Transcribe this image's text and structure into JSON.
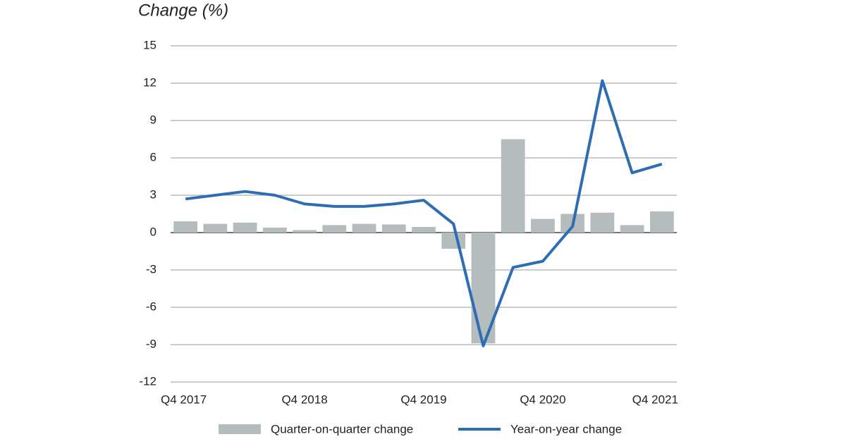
{
  "chart_data": {
    "type": "bar_line",
    "y_axis_label": "Change (%)",
    "categories": [
      "Q4 2017",
      null,
      null,
      null,
      "Q4 2018",
      null,
      null,
      null,
      "Q4 2019",
      null,
      null,
      null,
      "Q4 2020",
      null,
      null,
      null,
      "Q4 2021"
    ],
    "series": [
      {
        "name": "Quarter-on-quarter change",
        "type": "bar",
        "color": "#b4bcbe",
        "values": [
          0.9,
          0.7,
          0.8,
          0.4,
          0.2,
          0.6,
          0.7,
          0.65,
          0.45,
          -1.3,
          -8.9,
          7.5,
          1.1,
          1.5,
          1.6,
          0.6,
          1.7
        ]
      },
      {
        "name": "Year-on-year change",
        "type": "line",
        "color": "#2e6db4",
        "values": [
          2.7,
          3.0,
          3.3,
          3.0,
          2.3,
          2.1,
          2.1,
          2.3,
          2.6,
          0.7,
          -9.1,
          -2.8,
          -2.3,
          0.5,
          12.2,
          4.8,
          5.5
        ]
      }
    ],
    "ylim": [
      -12,
      15
    ],
    "yticks": [
      -12,
      -9,
      -6,
      -3,
      0,
      3,
      6,
      9,
      12,
      15
    ],
    "grid": true,
    "legend": "bottom"
  }
}
